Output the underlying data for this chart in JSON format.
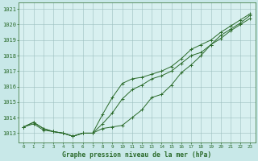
{
  "title": "Graphe pression niveau de la mer (hPa)",
  "background_color": "#c8e8e8",
  "plot_bg_color": "#d8f0f0",
  "grid_color": "#9bbfbf",
  "line_color": "#2a6a2a",
  "xlim": [
    -0.5,
    23.5
  ],
  "ylim": [
    1012.4,
    1021.4
  ],
  "xtick_labels": [
    "0",
    "1",
    "2",
    "3",
    "4",
    "5",
    "6",
    "7",
    "8",
    "9",
    "10",
    "11",
    "12",
    "13",
    "14",
    "15",
    "16",
    "17",
    "18",
    "19",
    "20",
    "21",
    "22",
    "23"
  ],
  "ytick_vals": [
    1013,
    1014,
    1015,
    1016,
    1017,
    1018,
    1019,
    1020,
    1021
  ],
  "series": [
    [
      1013.4,
      1013.7,
      1013.3,
      1013.1,
      1013.0,
      1012.8,
      1013.0,
      1013.0,
      1013.3,
      1013.4,
      1013.5,
      1014.0,
      1014.5,
      1015.3,
      1015.5,
      1016.1,
      1016.9,
      1017.4,
      1018.0,
      1018.7,
      1019.3,
      1019.7,
      1020.1,
      1020.6
    ],
    [
      1013.4,
      1013.6,
      1013.2,
      1013.1,
      1013.0,
      1012.8,
      1013.0,
      1013.0,
      1014.2,
      1015.3,
      1016.2,
      1016.5,
      1016.6,
      1016.8,
      1017.0,
      1017.3,
      1017.8,
      1018.4,
      1018.7,
      1019.0,
      1019.5,
      1019.9,
      1020.3,
      1020.7
    ],
    [
      1013.4,
      1013.7,
      1013.3,
      1013.1,
      1013.0,
      1012.8,
      1013.0,
      1013.0,
      1013.6,
      1014.3,
      1015.2,
      1015.8,
      1016.1,
      1016.5,
      1016.7,
      1017.0,
      1017.5,
      1018.0,
      1018.2,
      1018.7,
      1019.1,
      1019.6,
      1020.0,
      1020.4
    ]
  ]
}
